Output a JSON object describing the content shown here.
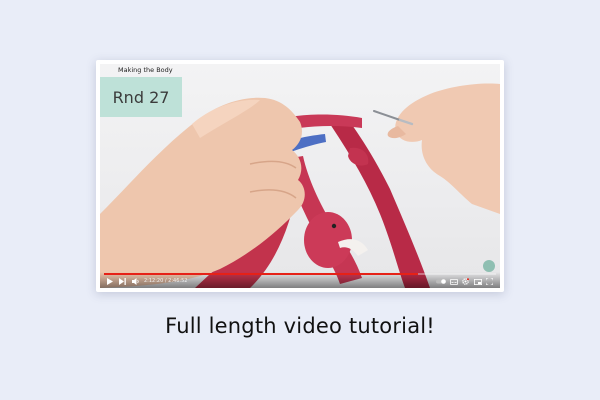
{
  "video": {
    "chapter_title": "Making the Body",
    "round_label": "Rnd 27",
    "time_current": "2:12:20",
    "time_separator": " / ",
    "time_total": "2:46:52",
    "progress_fraction": 0.8,
    "accent_color": "#e62117",
    "controls": {
      "play_icon": "play-icon",
      "next_icon": "next-icon",
      "volume_icon": "volume-icon",
      "autoplay_icon": "autoplay-toggle-icon",
      "subtitles_icon": "subtitles-icon",
      "settings_icon": "gear-icon",
      "miniplayer_icon": "miniplayer-icon",
      "theater_icon": "theater-mode-icon",
      "fullscreen_icon": "fullscreen-icon"
    }
  },
  "caption": "Full length video tutorial!"
}
